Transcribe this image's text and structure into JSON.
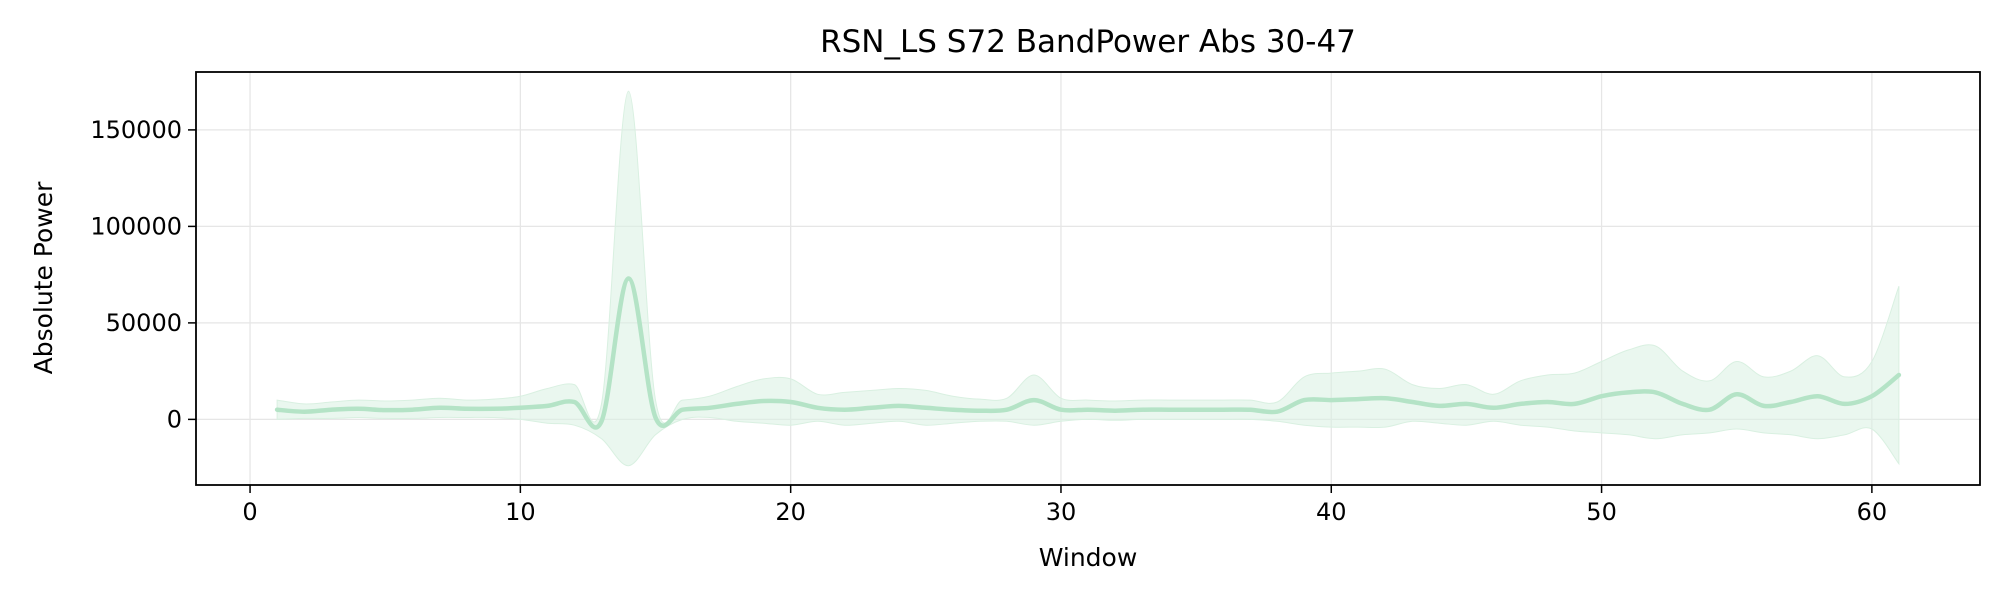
{
  "chart_data": {
    "type": "line",
    "title": "RSN_LS S72 BandPower Abs 30-47",
    "xlabel": "Window",
    "ylabel": "Absolute Power",
    "xlim": [
      -2,
      64
    ],
    "ylim": [
      -34000,
      180000
    ],
    "x_ticks": [
      0,
      10,
      20,
      30,
      40,
      50,
      60
    ],
    "y_ticks": [
      0,
      50000,
      100000,
      150000
    ],
    "grid": true,
    "legend": "none",
    "colors": {
      "line": "#b4e3c6",
      "band": "#d9f0e1"
    },
    "series": [
      {
        "x": [
          1,
          2,
          3,
          4,
          5,
          6,
          7,
          8,
          9,
          10,
          11,
          12,
          13,
          14,
          15,
          16,
          17,
          18,
          19,
          20,
          21,
          22,
          23,
          24,
          25,
          26,
          27,
          28,
          29,
          30,
          31,
          32,
          33,
          34,
          35,
          36,
          37,
          38,
          39,
          40,
          41,
          42,
          43,
          44,
          45,
          46,
          47,
          48,
          49,
          50,
          51,
          52,
          53,
          54,
          55,
          56,
          57,
          58,
          59,
          60,
          61
        ],
        "mean": [
          5000,
          4000,
          5000,
          5500,
          4800,
          5000,
          6000,
          5500,
          5500,
          6000,
          7000,
          9000,
          -1000,
          73000,
          1000,
          5000,
          6000,
          8000,
          9500,
          9000,
          6000,
          5000,
          6000,
          7000,
          6000,
          5000,
          4500,
          5000,
          10000,
          5000,
          5000,
          4500,
          5000,
          5000,
          5000,
          5000,
          5000,
          4000,
          10000,
          10000,
          10500,
          11000,
          9000,
          7000,
          8000,
          6000,
          8000,
          9000,
          8000,
          12000,
          14000,
          14000,
          8000,
          5000,
          13000,
          7000,
          9000,
          12000,
          8000,
          12000,
          23000
        ],
        "upper": [
          10000,
          8000,
          9000,
          10000,
          9500,
          10000,
          11000,
          10000,
          10500,
          12000,
          16000,
          18000,
          8000,
          170000,
          10000,
          10000,
          12000,
          17000,
          21000,
          21000,
          13000,
          14000,
          15000,
          16000,
          15000,
          12000,
          10500,
          11000,
          23000,
          11000,
          10000,
          9500,
          10000,
          10000,
          10000,
          10000,
          10000,
          9000,
          22000,
          24000,
          25000,
          26000,
          18000,
          16000,
          18000,
          13000,
          20000,
          23000,
          24000,
          30000,
          36000,
          38000,
          25000,
          20000,
          30000,
          22000,
          25000,
          33000,
          22000,
          30000,
          69000
        ],
        "lower": [
          0,
          500,
          500,
          1000,
          500,
          500,
          1000,
          1000,
          1000,
          0,
          -2000,
          -3000,
          -10000,
          -24000,
          -8000,
          0,
          1000,
          -1000,
          -2000,
          -3000,
          -1000,
          -3000,
          -2000,
          -1000,
          -3000,
          -2000,
          -1000,
          -1000,
          -3000,
          -1000,
          0,
          -500,
          0,
          0,
          0,
          0,
          0,
          -1000,
          -3000,
          -4000,
          -4000,
          -4000,
          -1000,
          -2000,
          -3000,
          -1000,
          -3000,
          -4000,
          -6000,
          -7000,
          -8000,
          -10000,
          -8000,
          -7000,
          -5000,
          -7000,
          -8000,
          -10000,
          -8000,
          -5000,
          -23000
        ]
      }
    ]
  }
}
